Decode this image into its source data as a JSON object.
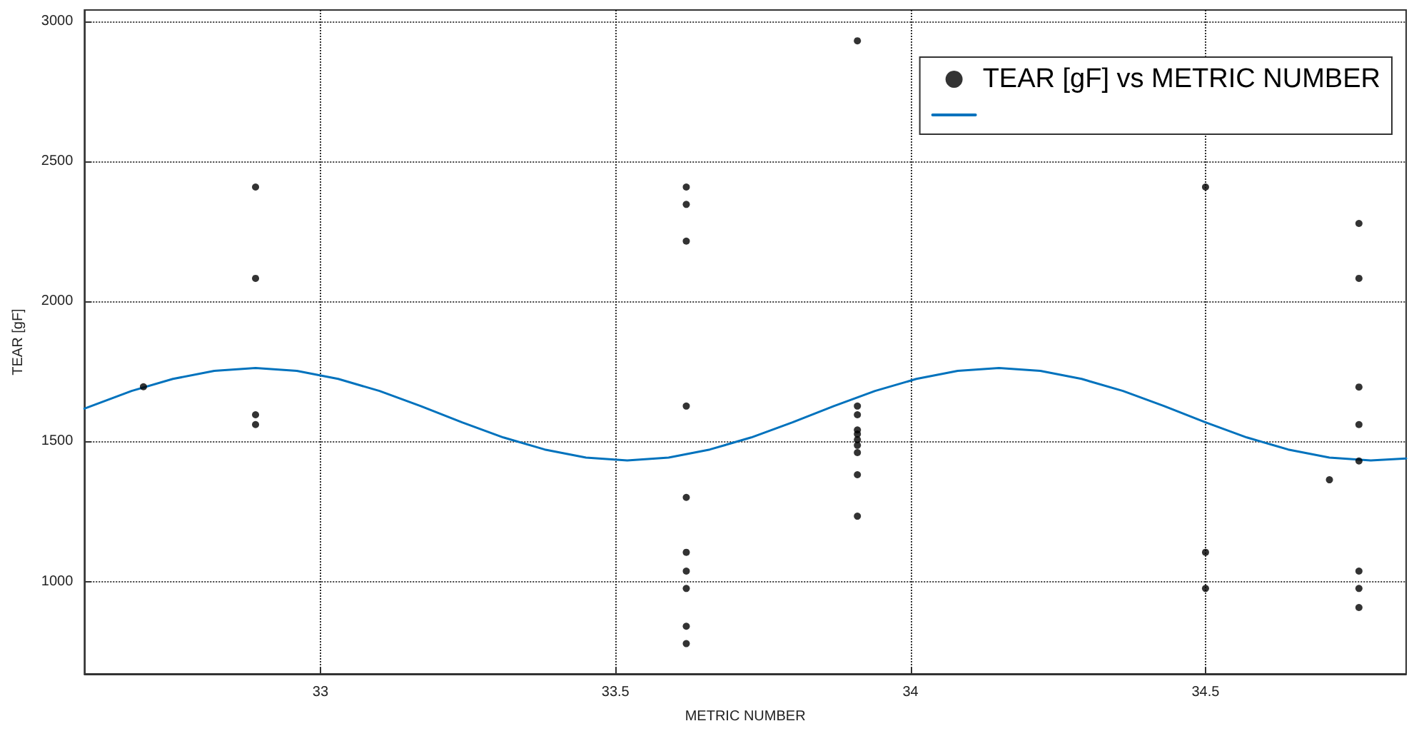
{
  "chart_data": {
    "type": "scatter",
    "xlabel": "METRIC NUMBER",
    "ylabel": "TEAR [gF]",
    "xlim": [
      32.6,
      34.84
    ],
    "ylim": [
      670,
      3040
    ],
    "xticks": [
      33,
      33.5,
      34,
      34.5
    ],
    "yticks": [
      1000,
      1500,
      2000,
      2500,
      3000
    ],
    "grid": true,
    "legend": "top right",
    "series": [
      {
        "name": "TEAR [gF] vs METRIC NUMBER",
        "type": "scatter",
        "marker": "circle",
        "color": "#000000",
        "x": [
          32.7,
          32.89,
          32.89,
          32.89,
          32.89,
          33.62,
          33.62,
          33.62,
          33.62,
          33.62,
          33.62,
          33.62,
          33.62,
          33.62,
          33.62,
          33.91,
          33.91,
          33.91,
          33.91,
          33.91,
          33.91,
          33.91,
          33.91,
          33.91,
          33.91,
          34.5,
          34.5,
          34.5,
          34.71,
          34.76,
          34.76,
          34.76,
          34.76,
          34.76,
          34.76,
          34.76,
          34.76
        ],
        "values": [
          1695,
          2408,
          2082,
          1595,
          1560,
          2408,
          2346,
          2215,
          1626,
          1300,
          1104,
          1037,
          975,
          840,
          778,
          2930,
          1626,
          1595,
          1541,
          1526,
          1506,
          1486,
          1460,
          1381,
          1233,
          2408,
          1104,
          975,
          1363,
          2278,
          2082,
          1694,
          1560,
          1430,
          1037,
          975,
          907
        ]
      },
      {
        "type": "line",
        "marker": "none",
        "line_style": "solid",
        "color": "#0072bd",
        "x": [
          32.6,
          32.68,
          32.75,
          32.82,
          32.89,
          32.96,
          33.03,
          33.1,
          33.17,
          33.24,
          33.31,
          33.38,
          33.45,
          33.52,
          33.59,
          33.66,
          33.73,
          33.8,
          33.87,
          33.94,
          34.01,
          34.08,
          34.15,
          34.22,
          34.29,
          34.36,
          34.43,
          34.5,
          34.57,
          34.64,
          34.71,
          34.78,
          34.84
        ],
        "values": [
          1617,
          1680,
          1723,
          1752,
          1762,
          1752,
          1723,
          1680,
          1626,
          1568,
          1514,
          1471,
          1442,
          1432,
          1442,
          1471,
          1514,
          1568,
          1626,
          1680,
          1723,
          1752,
          1762,
          1752,
          1723,
          1680,
          1626,
          1568,
          1514,
          1471,
          1442,
          1432,
          1439
        ]
      }
    ]
  }
}
